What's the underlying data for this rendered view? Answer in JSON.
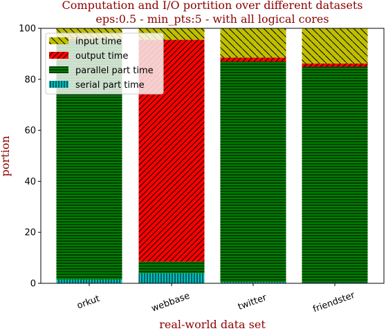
{
  "chart_data": {
    "type": "bar",
    "stacked": true,
    "title": "Computation and I/O portition over different datasets",
    "subtitle": "eps:0.5 - min_pts:5 - with all logical cores",
    "xlabel": "real-world data set",
    "ylabel": "portion",
    "ylim": [
      0,
      100
    ],
    "yticks": [
      "0",
      "20",
      "40",
      "60",
      "80",
      "100"
    ],
    "categories": [
      "orkut",
      "webbase",
      "twitter",
      "friendster"
    ],
    "series": [
      {
        "name": "serial part time",
        "color": "#00bfbf",
        "hatch": "vertical",
        "values": [
          1.5,
          4.0,
          0.5,
          0.3
        ]
      },
      {
        "name": "parallel part time",
        "color": "#008000",
        "hatch": "horizontal",
        "values": [
          94.0,
          4.5,
          86.5,
          84.7
        ]
      },
      {
        "name": "output time",
        "color": "#ff0000",
        "hatch": "diagonal-up",
        "values": [
          0.3,
          87.0,
          1.5,
          1.2
        ]
      },
      {
        "name": "input time",
        "color": "#bfbf00",
        "hatch": "diagonal-down",
        "values": [
          4.2,
          4.5,
          11.5,
          13.8
        ]
      }
    ],
    "legend": {
      "position": "top-left",
      "order": [
        "input time",
        "output time",
        "parallel part time",
        "serial part time"
      ]
    },
    "grid": false
  }
}
